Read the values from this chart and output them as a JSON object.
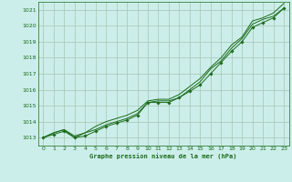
{
  "title": "Graphe pression niveau de la mer (hPa)",
  "bg_color": "#cceeea",
  "grid_color": "#aaccbb",
  "line_color": "#1a6b1a",
  "marker_color": "#1a6b1a",
  "xlim": [
    -0.5,
    23.5
  ],
  "ylim": [
    1012.5,
    1021.5
  ],
  "xticks": [
    0,
    1,
    2,
    3,
    4,
    5,
    6,
    7,
    8,
    9,
    10,
    11,
    12,
    13,
    14,
    15,
    16,
    17,
    18,
    19,
    20,
    21,
    22,
    23
  ],
  "yticks": [
    1013,
    1014,
    1015,
    1016,
    1017,
    1018,
    1019,
    1020,
    1021
  ],
  "series": [
    [
      1013.0,
      1013.3,
      1013.5,
      1013.0,
      1013.3,
      1013.5,
      1013.8,
      1014.0,
      1014.2,
      1014.5,
      1015.2,
      1015.3,
      1015.3,
      1015.5,
      1016.0,
      1016.5,
      1017.3,
      1017.8,
      1018.6,
      1019.2,
      1020.1,
      1020.4,
      1020.6,
      1021.1
    ],
    [
      1013.0,
      1013.2,
      1013.4,
      1013.0,
      1013.1,
      1013.4,
      1013.7,
      1013.9,
      1014.1,
      1014.4,
      1015.2,
      1015.2,
      1015.2,
      1015.5,
      1015.9,
      1016.3,
      1017.0,
      1017.7,
      1018.4,
      1019.0,
      1019.9,
      1020.2,
      1020.5,
      1021.1
    ],
    [
      1013.0,
      1013.3,
      1013.5,
      1013.1,
      1013.3,
      1013.7,
      1014.0,
      1014.2,
      1014.4,
      1014.7,
      1015.3,
      1015.4,
      1015.4,
      1015.7,
      1016.2,
      1016.7,
      1017.4,
      1018.0,
      1018.8,
      1019.3,
      1020.3,
      1020.5,
      1020.8,
      1021.4
    ]
  ],
  "marker_series": 1,
  "figsize": [
    3.2,
    2.0
  ],
  "dpi": 100
}
